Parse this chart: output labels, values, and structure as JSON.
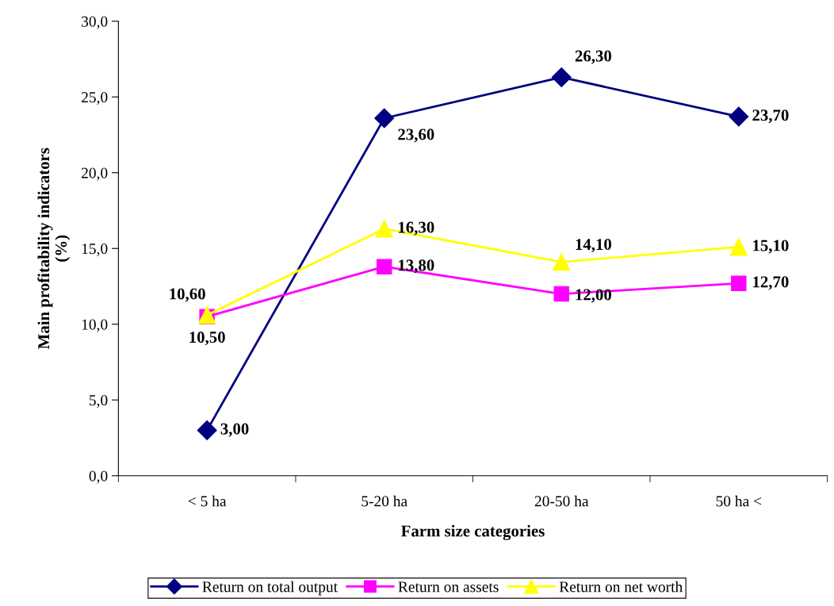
{
  "chart_data": {
    "type": "line",
    "xlabel": "Farm size categories",
    "ylabel": "Main profitability indicators\n(%)",
    "categories": [
      "< 5 ha",
      "5-20 ha",
      "20-50 ha",
      "50 ha <"
    ],
    "series": [
      {
        "name": "Return on total output",
        "color": "#000080",
        "marker": "diamond",
        "values": [
          3.0,
          23.6,
          26.3,
          23.7
        ],
        "value_labels": [
          "3,00",
          "23,60",
          "26,30",
          "23,70"
        ]
      },
      {
        "name": "Return on assets",
        "color": "#ff00ff",
        "marker": "square",
        "values": [
          10.5,
          13.8,
          12.0,
          12.7
        ],
        "value_labels": [
          "10,50",
          "13,80",
          "12,00",
          "12,70"
        ]
      },
      {
        "name": "Return on net worth",
        "color": "#ffff00",
        "marker": "triangle",
        "values": [
          10.6,
          16.3,
          14.1,
          15.1
        ],
        "value_labels": [
          "10,60",
          "16,30",
          "14,10",
          "15,10"
        ]
      }
    ],
    "ylim": [
      0,
      30
    ],
    "yticks": [
      {
        "value": 0,
        "label": "0,0"
      },
      {
        "value": 5,
        "label": "5,0"
      },
      {
        "value": 10,
        "label": "10,0"
      },
      {
        "value": 15,
        "label": "15,0"
      },
      {
        "value": 20,
        "label": "20,0"
      },
      {
        "value": 25,
        "label": "25,0"
      },
      {
        "value": 30,
        "label": "30,0"
      }
    ],
    "grid": false,
    "legend": "bottom",
    "line_style": "solid"
  }
}
